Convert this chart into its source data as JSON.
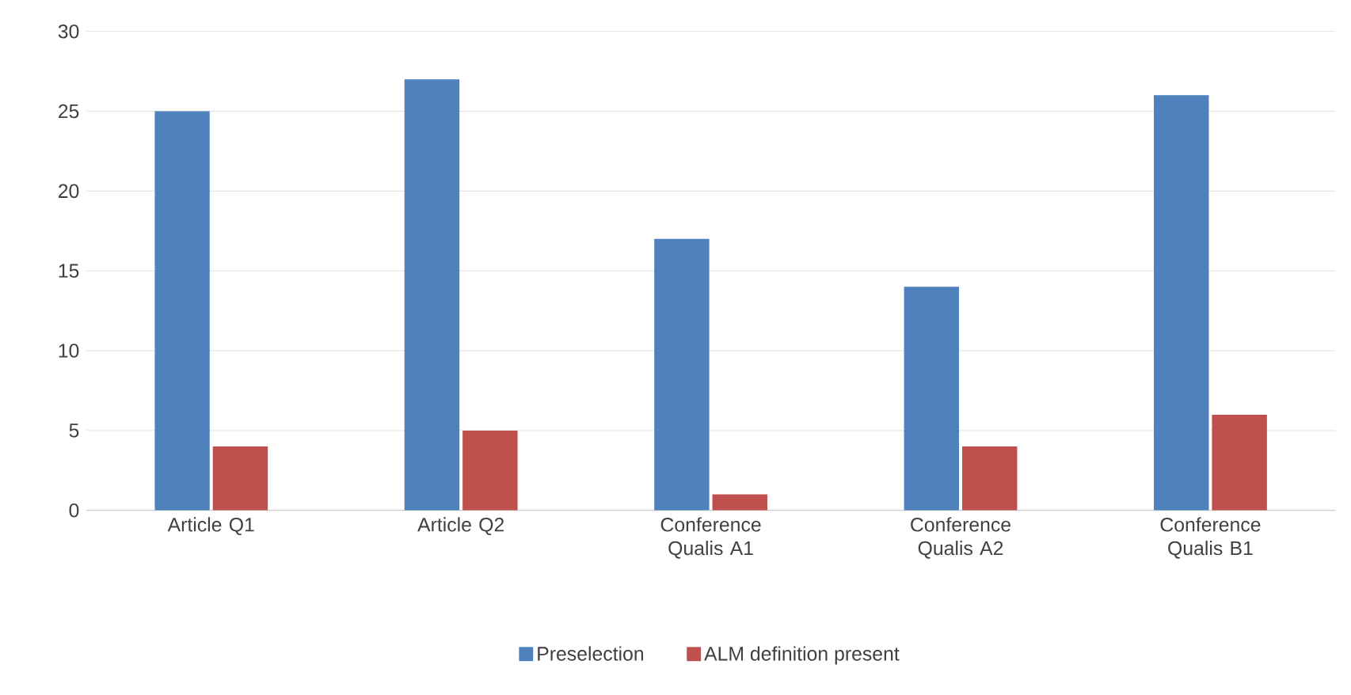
{
  "chart_data": {
    "type": "bar",
    "categories": [
      "Article Q1",
      "Article Q2",
      "Conference Qualis A1",
      "Conference Qualis A2",
      "Conference Qualis B1"
    ],
    "series": [
      {
        "name": "Preselection",
        "color": "#4f81bd",
        "values": [
          25,
          27,
          17,
          14,
          26
        ]
      },
      {
        "name": "ALM definition present",
        "color": "#c0504d",
        "values": [
          4,
          5,
          1,
          4,
          6
        ]
      }
    ],
    "ylim": [
      0,
      30
    ],
    "yticks": [
      0,
      5,
      10,
      15,
      20,
      25,
      30
    ],
    "grid": "y",
    "legend": "bottom"
  }
}
